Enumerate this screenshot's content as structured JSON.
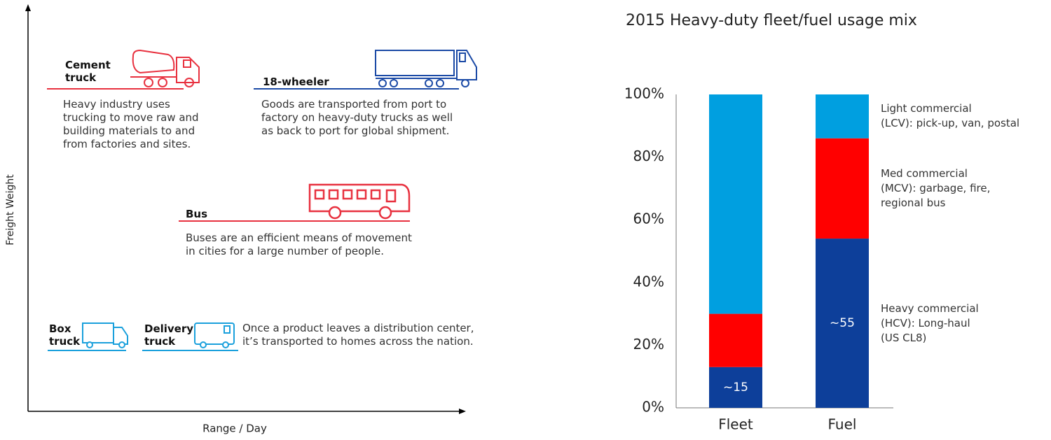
{
  "diagram": {
    "y_axis_label": "Freight Weight",
    "x_axis_label": "Range / Day",
    "items": [
      {
        "title": "Cement\ntruck",
        "description": "Heavy industry uses\ntrucking to move raw and\nbuilding materials to and\nfrom factories and sites."
      },
      {
        "title": "18-wheeler",
        "description": "Goods are transported from port to\nfactory on heavy-duty trucks as well\nas back to port for global shipment."
      },
      {
        "title": "Bus",
        "description": "Buses are an efficient means of movement\nin cities for a large number of people."
      },
      {
        "title": "Box\ntruck"
      },
      {
        "title": "Delivery\ntruck"
      }
    ],
    "delivery_note": "Once a product leaves a distribution center,\nit’s transported to homes across the nation."
  },
  "chart_data": {
    "type": "bar",
    "stacked": true,
    "title": "2015 Heavy-duty fleet/fuel usage mix",
    "categories": [
      "Fleet",
      "Fuel"
    ],
    "series": [
      {
        "name": "Heavy commercial\n(HCV): Long-haul\n(US CL8)",
        "color": "#0d3f9a",
        "values": [
          13,
          54
        ]
      },
      {
        "name": "Med commercial\n(MCV): garbage, fire,\nregional bus",
        "color": "#ff0000",
        "values": [
          17,
          32
        ]
      },
      {
        "name": "Light commercial\n(LCV): pick-up, van,  postal",
        "color": "#009fe0",
        "values": [
          70,
          14
        ]
      }
    ],
    "annotations": [
      "~15",
      "~55"
    ],
    "ylim": [
      0,
      100
    ],
    "yticks": [
      {
        "value": 0,
        "label": "0%"
      },
      {
        "value": 20,
        "label": "20%"
      },
      {
        "value": 40,
        "label": "40%"
      },
      {
        "value": 60,
        "label": "60%"
      },
      {
        "value": 80,
        "label": "80%"
      },
      {
        "value": 100,
        "label": "100%"
      }
    ]
  }
}
